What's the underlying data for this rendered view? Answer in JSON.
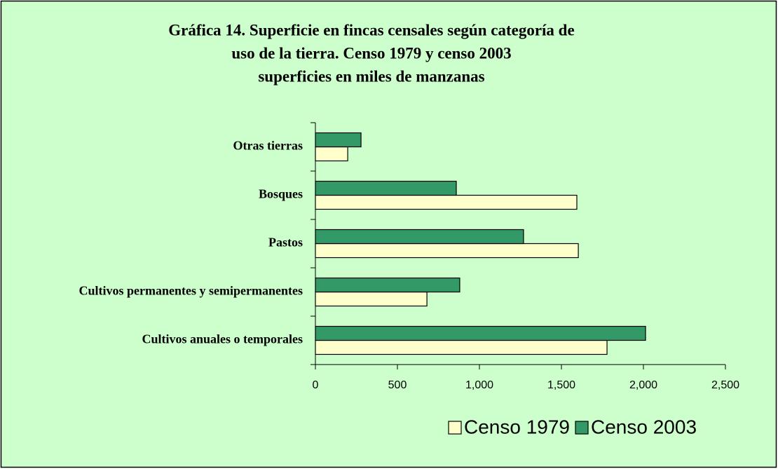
{
  "chart_data": {
    "type": "barh",
    "title": [
      "Gráfica 14. Superficie en fincas censales según categoría de",
      "uso de la tierra. Censo 1979 y censo 2003",
      "superficies en miles de manzanas"
    ],
    "categories": [
      "Cultivos anuales o temporales",
      "Cultivos permanentes y semipermanentes",
      "Pastos",
      "Bosques",
      "Otras tierras"
    ],
    "series": [
      {
        "name": "Censo 1979",
        "color": "#FFFFCC",
        "values": [
          1778,
          680,
          1603,
          1594,
          197
        ]
      },
      {
        "name": "Censo 2003",
        "color": "#339966",
        "values": [
          2013,
          880,
          1269,
          859,
          278
        ]
      }
    ],
    "xlim": [
      0,
      2500
    ],
    "xticks": [
      0,
      500,
      {
        "value": 1000,
        "label": "1,000"
      },
      {
        "value": 1500,
        "label": "1,500"
      },
      {
        "value": 2000,
        "label": "2,000"
      },
      {
        "value": 2500,
        "label": "2,500"
      }
    ],
    "legend": "bottom-right",
    "background": "#CCFFCC"
  }
}
